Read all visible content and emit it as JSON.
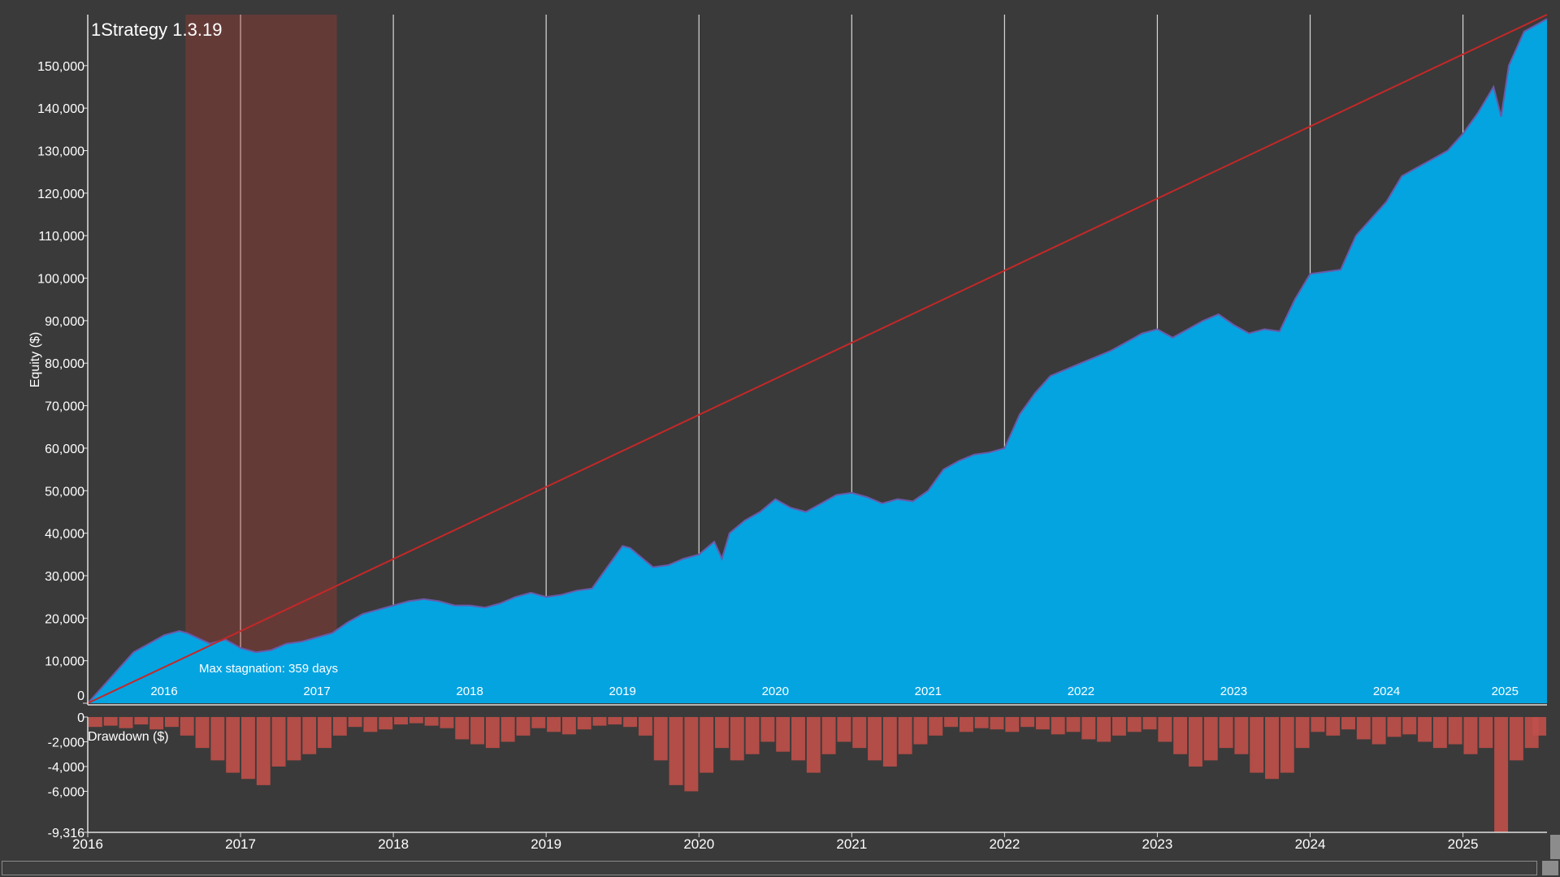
{
  "chart_data": [
    {
      "type": "area",
      "title": "1Strategy 1.3.19",
      "ylabel": "Equity ($)",
      "xlabel": "",
      "xlim": [
        2016.0,
        2025.55
      ],
      "ylim": [
        0,
        162000
      ],
      "y_ticks": [
        0,
        10000,
        20000,
        30000,
        40000,
        50000,
        60000,
        70000,
        80000,
        90000,
        100000,
        110000,
        120000,
        130000,
        140000,
        150000
      ],
      "y_tick_labels": [
        "0",
        "10,000",
        "20,000",
        "30,000",
        "40,000",
        "50,000",
        "60,000",
        "70,000",
        "80,000",
        "90,000",
        "100,000",
        "110,000",
        "120,000",
        "130,000",
        "140,000",
        "150,000"
      ],
      "year_labels": [
        "2016",
        "2017",
        "2018",
        "2019",
        "2020",
        "2021",
        "2022",
        "2023",
        "2024",
        "2025"
      ],
      "grid": true,
      "series": [
        {
          "color": "#04a4e1",
          "x": [
            2016.0,
            2016.1,
            2016.2,
            2016.3,
            2016.4,
            2016.5,
            2016.6,
            2016.65,
            2016.8,
            2016.9,
            2017.0,
            2017.1,
            2017.2,
            2017.3,
            2017.4,
            2017.5,
            2017.6,
            2017.7,
            2017.8,
            2017.9,
            2018.0,
            2018.1,
            2018.2,
            2018.3,
            2018.4,
            2018.5,
            2018.6,
            2018.7,
            2018.8,
            2018.9,
            2019.0,
            2019.1,
            2019.2,
            2019.3,
            2019.4,
            2019.5,
            2019.55,
            2019.6,
            2019.7,
            2019.8,
            2019.9,
            2020.0,
            2020.1,
            2020.15,
            2020.2,
            2020.3,
            2020.4,
            2020.5,
            2020.6,
            2020.7,
            2020.8,
            2020.9,
            2021.0,
            2021.1,
            2021.2,
            2021.3,
            2021.4,
            2021.5,
            2021.6,
            2021.7,
            2021.8,
            2021.9,
            2022.0,
            2022.1,
            2022.2,
            2022.3,
            2022.4,
            2022.5,
            2022.6,
            2022.7,
            2022.8,
            2022.9,
            2023.0,
            2023.1,
            2023.2,
            2023.3,
            2023.4,
            2023.5,
            2023.6,
            2023.7,
            2023.8,
            2023.9,
            2024.0,
            2024.1,
            2024.2,
            2024.3,
            2024.4,
            2024.5,
            2024.6,
            2024.7,
            2024.8,
            2024.9,
            2025.0,
            2025.1,
            2025.2,
            2025.25,
            2025.3,
            2025.4,
            2025.5,
            2025.55
          ],
          "values": [
            0,
            4000,
            8000,
            12000,
            14000,
            16000,
            17000,
            16500,
            14000,
            15000,
            13000,
            12000,
            12500,
            14000,
            14500,
            15500,
            16500,
            19000,
            21000,
            22000,
            23000,
            24000,
            24500,
            24000,
            23000,
            23000,
            22500,
            23500,
            25000,
            26000,
            25000,
            25500,
            26500,
            27000,
            32000,
            37000,
            36500,
            35000,
            32000,
            32500,
            34000,
            35000,
            38000,
            34000,
            40000,
            43000,
            45000,
            48000,
            46000,
            45000,
            47000,
            49000,
            49500,
            48500,
            47000,
            48000,
            47500,
            50000,
            55000,
            57000,
            58500,
            59000,
            60000,
            68000,
            73000,
            77000,
            78500,
            80000,
            81500,
            83000,
            85000,
            87000,
            88000,
            86000,
            88000,
            90000,
            91500,
            89000,
            87000,
            88000,
            87500,
            95000,
            101000,
            101500,
            102000,
            110000,
            114000,
            118000,
            124000,
            126000,
            128000,
            130000,
            134000,
            139000,
            145000,
            138000,
            150000,
            158000,
            160000,
            161000
          ]
        },
        {
          "color": "#c42828",
          "x": [
            2016.0,
            2025.55
          ],
          "values": [
            0,
            162000
          ]
        }
      ],
      "annotations": [
        {
          "type": "shaded-region",
          "x_range": [
            2016.64,
            2017.63
          ],
          "label": "Max stagnation: 359 days",
          "color": "#c83c32"
        }
      ]
    },
    {
      "type": "bar",
      "title": "Drawdown ($)",
      "xlabel": "",
      "ylabel": "",
      "ylim": [
        -9316,
        0
      ],
      "y_ticks": [
        0,
        -2000,
        -4000,
        -6000,
        -9316
      ],
      "y_tick_labels": [
        "0",
        "-2,000",
        "-4,000",
        "-6,000",
        "-9,316"
      ],
      "x_ticks": [
        2016,
        2017,
        2018,
        2019,
        2020,
        2021,
        2022,
        2023,
        2024,
        2025
      ],
      "x_tick_labels": [
        "2016",
        "2017",
        "2018",
        "2019",
        "2020",
        "2021",
        "2022",
        "2023",
        "2024",
        "2025"
      ],
      "grid": false,
      "color": "#c0504a",
      "x": [
        2016.05,
        2016.15,
        2016.25,
        2016.35,
        2016.45,
        2016.55,
        2016.65,
        2016.75,
        2016.85,
        2016.95,
        2017.05,
        2017.15,
        2017.25,
        2017.35,
        2017.45,
        2017.55,
        2017.65,
        2017.75,
        2017.85,
        2017.95,
        2018.05,
        2018.15,
        2018.25,
        2018.35,
        2018.45,
        2018.55,
        2018.65,
        2018.75,
        2018.85,
        2018.95,
        2019.05,
        2019.15,
        2019.25,
        2019.35,
        2019.45,
        2019.55,
        2019.65,
        2019.75,
        2019.85,
        2019.95,
        2020.05,
        2020.15,
        2020.25,
        2020.35,
        2020.45,
        2020.55,
        2020.65,
        2020.75,
        2020.85,
        2020.95,
        2021.05,
        2021.15,
        2021.25,
        2021.35,
        2021.45,
        2021.55,
        2021.65,
        2021.75,
        2021.85,
        2021.95,
        2022.05,
        2022.15,
        2022.25,
        2022.35,
        2022.45,
        2022.55,
        2022.65,
        2022.75,
        2022.85,
        2022.95,
        2023.05,
        2023.15,
        2023.25,
        2023.35,
        2023.45,
        2023.55,
        2023.65,
        2023.75,
        2023.85,
        2023.95,
        2024.05,
        2024.15,
        2024.25,
        2024.35,
        2024.45,
        2024.55,
        2024.65,
        2024.75,
        2024.85,
        2024.95,
        2025.05,
        2025.15,
        2025.25,
        2025.35,
        2025.45,
        2025.5
      ],
      "values": [
        -800,
        -700,
        -900,
        -600,
        -1000,
        -800,
        -1500,
        -2500,
        -3500,
        -4500,
        -5000,
        -5500,
        -4000,
        -3500,
        -3000,
        -2500,
        -1500,
        -800,
        -1200,
        -1000,
        -600,
        -500,
        -700,
        -900,
        -1800,
        -2200,
        -2500,
        -2000,
        -1500,
        -900,
        -1200,
        -1400,
        -1000,
        -700,
        -600,
        -800,
        -1500,
        -3500,
        -5500,
        -6000,
        -4500,
        -2500,
        -3500,
        -3000,
        -2000,
        -2800,
        -3500,
        -4500,
        -3000,
        -2000,
        -2500,
        -3500,
        -4000,
        -3000,
        -2200,
        -1500,
        -800,
        -1200,
        -900,
        -1000,
        -1200,
        -800,
        -1000,
        -1400,
        -1200,
        -1800,
        -2000,
        -1500,
        -1200,
        -1000,
        -2000,
        -3000,
        -4000,
        -3500,
        -2500,
        -3000,
        -4500,
        -5000,
        -4500,
        -2500,
        -1200,
        -1500,
        -1000,
        -1800,
        -2200,
        -1600,
        -1400,
        -2000,
        -2500,
        -2200,
        -3000,
        -2500,
        -9316,
        -3500,
        -2500,
        -1500
      ]
    }
  ],
  "equity_title": "1Strategy 1.3.19",
  "equity_ylabel": "Equity ($)",
  "stagnation_label": "Max stagnation: 359 days",
  "drawdown_label": "Drawdown ($)"
}
